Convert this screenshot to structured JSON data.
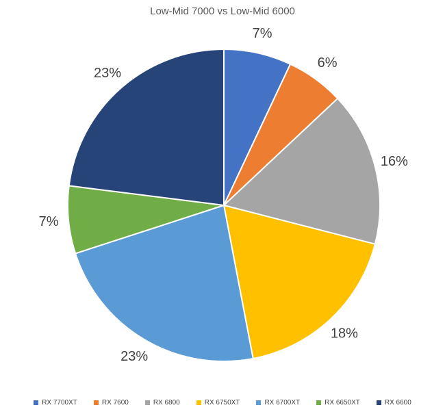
{
  "chart_data": {
    "type": "pie",
    "title": "Low-Mid 7000 vs Low-Mid 6000",
    "categories": [
      "RX 7700XT",
      "RX 7600",
      "RX 6800",
      "RX 6750XT",
      "RX 6700XT",
      "RX 6650XT",
      "RX 6600"
    ],
    "values": [
      7,
      6,
      16,
      18,
      23,
      7,
      23
    ],
    "labels": [
      "7%",
      "6%",
      "16%",
      "18%",
      "23%",
      "7%",
      "23%"
    ],
    "colors": [
      "#4472C4",
      "#ED7D31",
      "#A5A5A5",
      "#FFC000",
      "#5B9BD5",
      "#70AD47",
      "#264478"
    ],
    "unit": "%",
    "start_angle_deg": 0,
    "direction": "clockwise",
    "legend_position": "bottom",
    "label_position": "outside-end",
    "slice_border_color": "#FFFFFF",
    "title_color": "#595959",
    "label_color": "#404040",
    "legend_text_color": "#404040",
    "background_color": "#FFFFFF"
  }
}
